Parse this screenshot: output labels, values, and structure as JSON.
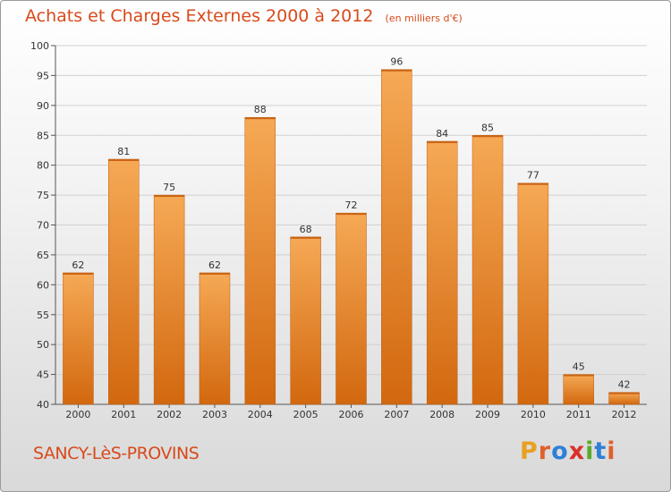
{
  "header": {
    "title": "Achats et Charges Externes 2000 à 2012",
    "subtitle": "(en milliers d'€)"
  },
  "footer": {
    "commune": "SANCY-LèS-PROVINS",
    "logo_text": "Proxiti",
    "logo_colors": [
      "#e8a020",
      "#e0602a",
      "#2f7fd6",
      "#d9302a",
      "#5aaa2a",
      "#2f7fd6",
      "#e0602a"
    ]
  },
  "colors": {
    "bar_top": "#f6a955",
    "bar_bottom": "#d2680f",
    "bar_edge": "#c05d10",
    "title": "#d84a1b",
    "grid": "#d0d0d0"
  },
  "chart_data": {
    "type": "bar",
    "title": "Achats et Charges Externes 2000 à 2012",
    "subtitle": "(en milliers d'€)",
    "xlabel": "",
    "ylabel": "",
    "categories": [
      "2000",
      "2001",
      "2002",
      "2003",
      "2004",
      "2005",
      "2006",
      "2007",
      "2008",
      "2009",
      "2010",
      "2011",
      "2012"
    ],
    "values": [
      62,
      81,
      75,
      62,
      88,
      68,
      72,
      96,
      84,
      85,
      77,
      45,
      42
    ],
    "ylim": [
      40,
      100
    ],
    "yticks": [
      40,
      45,
      50,
      55,
      60,
      65,
      70,
      75,
      80,
      85,
      90,
      95,
      100
    ],
    "grid": true,
    "legend": "none"
  }
}
